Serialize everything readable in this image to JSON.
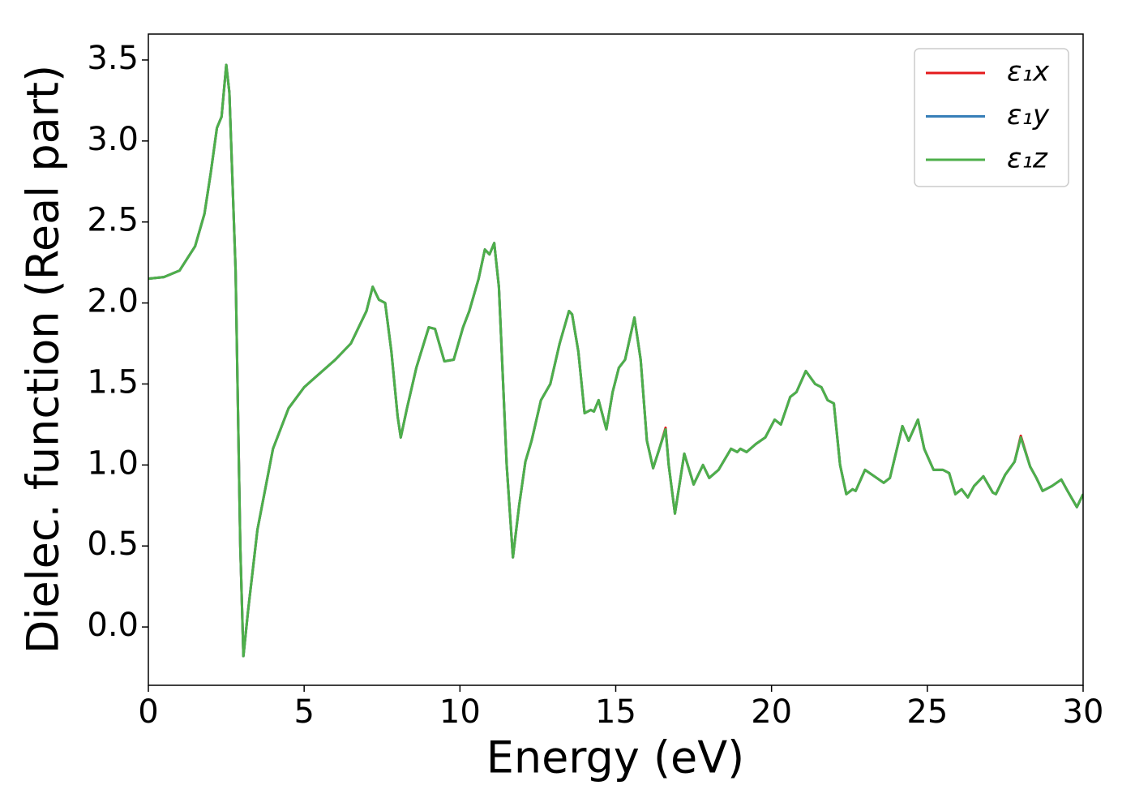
{
  "chart_data": {
    "type": "line",
    "xlabel": "Energy (eV)",
    "ylabel": "Dielec. function (Real part)",
    "x": [
      0,
      0.5,
      1.0,
      1.5,
      1.8,
      2.0,
      2.2,
      2.35,
      2.5,
      2.6,
      2.8,
      2.95,
      3.05,
      3.2,
      3.5,
      4.0,
      4.5,
      5.0,
      6.0,
      6.5,
      7.0,
      7.2,
      7.4,
      7.6,
      7.8,
      8.0,
      8.1,
      8.3,
      8.6,
      9.0,
      9.2,
      9.5,
      9.8,
      10.1,
      10.3,
      10.6,
      10.8,
      10.95,
      11.1,
      11.25,
      11.5,
      11.7,
      11.9,
      12.1,
      12.3,
      12.6,
      12.9,
      13.2,
      13.5,
      13.6,
      13.8,
      14.0,
      14.2,
      14.3,
      14.45,
      14.7,
      14.9,
      15.1,
      15.3,
      15.6,
      15.8,
      16.0,
      16.2,
      16.4,
      16.6,
      16.7,
      16.9,
      17.2,
      17.5,
      17.8,
      18.0,
      18.3,
      18.7,
      18.9,
      19.0,
      19.2,
      19.5,
      19.8,
      20.1,
      20.3,
      20.6,
      20.8,
      21.1,
      21.4,
      21.6,
      21.8,
      22.0,
      22.2,
      22.4,
      22.6,
      22.7,
      23.0,
      23.3,
      23.6,
      23.8,
      24.2,
      24.4,
      24.7,
      24.9,
      25.2,
      25.5,
      25.7,
      25.9,
      26.1,
      26.3,
      26.5,
      26.8,
      27.1,
      27.2,
      27.5,
      27.8,
      28.0,
      28.3,
      28.5,
      28.7,
      29.0,
      29.3,
      29.5,
      29.8,
      30.0
    ],
    "series": [
      {
        "name": "ε₁x",
        "color": "#e41a1c",
        "values": [
          2.15,
          2.16,
          2.2,
          2.35,
          2.55,
          2.8,
          3.08,
          3.15,
          3.47,
          3.3,
          2.2,
          0.5,
          -0.18,
          0.1,
          0.6,
          1.1,
          1.35,
          1.48,
          1.65,
          1.75,
          1.95,
          2.1,
          2.02,
          2.0,
          1.7,
          1.3,
          1.17,
          1.35,
          1.6,
          1.85,
          1.84,
          1.64,
          1.65,
          1.85,
          1.95,
          2.15,
          2.33,
          2.3,
          2.37,
          2.1,
          1.0,
          0.43,
          0.75,
          1.02,
          1.15,
          1.4,
          1.5,
          1.75,
          1.95,
          1.93,
          1.7,
          1.32,
          1.34,
          1.33,
          1.4,
          1.22,
          1.45,
          1.6,
          1.65,
          1.91,
          1.65,
          1.15,
          0.98,
          1.1,
          1.23,
          1.0,
          0.7,
          1.07,
          0.88,
          1.0,
          0.92,
          0.97,
          1.1,
          1.08,
          1.1,
          1.08,
          1.13,
          1.17,
          1.28,
          1.25,
          1.42,
          1.45,
          1.58,
          1.5,
          1.48,
          1.4,
          1.38,
          1.0,
          0.82,
          0.85,
          0.84,
          0.97,
          0.93,
          0.89,
          0.92,
          1.24,
          1.15,
          1.28,
          1.1,
          0.97,
          0.97,
          0.95,
          0.82,
          0.85,
          0.8,
          0.87,
          0.93,
          0.83,
          0.82,
          0.94,
          1.02,
          1.18,
          0.99,
          0.92,
          0.84,
          0.87,
          0.91,
          0.84,
          0.74,
          0.82
        ]
      },
      {
        "name": "ε₁y",
        "color": "#377eb8",
        "values": [
          2.15,
          2.16,
          2.2,
          2.35,
          2.55,
          2.8,
          3.08,
          3.15,
          3.47,
          3.3,
          2.2,
          0.5,
          -0.18,
          0.1,
          0.6,
          1.1,
          1.35,
          1.48,
          1.65,
          1.75,
          1.95,
          2.1,
          2.02,
          2.0,
          1.7,
          1.3,
          1.17,
          1.35,
          1.6,
          1.85,
          1.84,
          1.64,
          1.65,
          1.85,
          1.95,
          2.15,
          2.33,
          2.3,
          2.37,
          2.1,
          1.0,
          0.43,
          0.75,
          1.02,
          1.15,
          1.4,
          1.5,
          1.75,
          1.95,
          1.93,
          1.7,
          1.32,
          1.34,
          1.33,
          1.4,
          1.22,
          1.45,
          1.6,
          1.65,
          1.91,
          1.65,
          1.15,
          0.98,
          1.1,
          1.22,
          1.0,
          0.7,
          1.07,
          0.88,
          1.0,
          0.92,
          0.97,
          1.1,
          1.08,
          1.1,
          1.08,
          1.13,
          1.17,
          1.28,
          1.25,
          1.42,
          1.45,
          1.58,
          1.5,
          1.48,
          1.4,
          1.38,
          1.0,
          0.82,
          0.85,
          0.84,
          0.97,
          0.93,
          0.89,
          0.92,
          1.24,
          1.15,
          1.28,
          1.1,
          0.97,
          0.97,
          0.95,
          0.82,
          0.85,
          0.8,
          0.87,
          0.93,
          0.83,
          0.82,
          0.94,
          1.02,
          1.17,
          0.99,
          0.92,
          0.84,
          0.87,
          0.91,
          0.84,
          0.74,
          0.82
        ]
      },
      {
        "name": "ε₁z",
        "color": "#4daf4a",
        "values": [
          2.15,
          2.16,
          2.2,
          2.35,
          2.55,
          2.8,
          3.08,
          3.15,
          3.47,
          3.3,
          2.2,
          0.5,
          -0.18,
          0.1,
          0.6,
          1.1,
          1.35,
          1.48,
          1.65,
          1.75,
          1.95,
          2.1,
          2.02,
          2.0,
          1.7,
          1.3,
          1.17,
          1.35,
          1.6,
          1.85,
          1.84,
          1.64,
          1.65,
          1.85,
          1.95,
          2.15,
          2.33,
          2.3,
          2.37,
          2.1,
          1.0,
          0.43,
          0.75,
          1.02,
          1.15,
          1.4,
          1.5,
          1.75,
          1.95,
          1.93,
          1.7,
          1.32,
          1.34,
          1.33,
          1.4,
          1.22,
          1.45,
          1.6,
          1.65,
          1.91,
          1.65,
          1.15,
          0.98,
          1.1,
          1.22,
          1.0,
          0.7,
          1.07,
          0.88,
          1.0,
          0.92,
          0.97,
          1.1,
          1.08,
          1.1,
          1.08,
          1.13,
          1.17,
          1.28,
          1.25,
          1.42,
          1.45,
          1.58,
          1.5,
          1.48,
          1.4,
          1.38,
          1.0,
          0.82,
          0.85,
          0.84,
          0.97,
          0.93,
          0.89,
          0.92,
          1.24,
          1.15,
          1.28,
          1.1,
          0.97,
          0.97,
          0.95,
          0.82,
          0.85,
          0.8,
          0.87,
          0.93,
          0.83,
          0.82,
          0.94,
          1.02,
          1.17,
          0.99,
          0.92,
          0.84,
          0.87,
          0.91,
          0.84,
          0.74,
          0.82
        ]
      }
    ],
    "xlim": [
      0,
      30
    ],
    "xticks": [
      0,
      5,
      10,
      15,
      20,
      25,
      30
    ],
    "ylim": [
      -0.36,
      3.66
    ],
    "yticks": [
      {
        "value": 0,
        "label": "0.0"
      },
      0.5,
      {
        "value": 1,
        "label": "1.0"
      },
      1.5,
      {
        "value": 2,
        "label": "2.0"
      },
      2.5,
      {
        "value": 3,
        "label": "3.0"
      },
      3.5
    ],
    "legend": "upper right",
    "grid": false
  }
}
